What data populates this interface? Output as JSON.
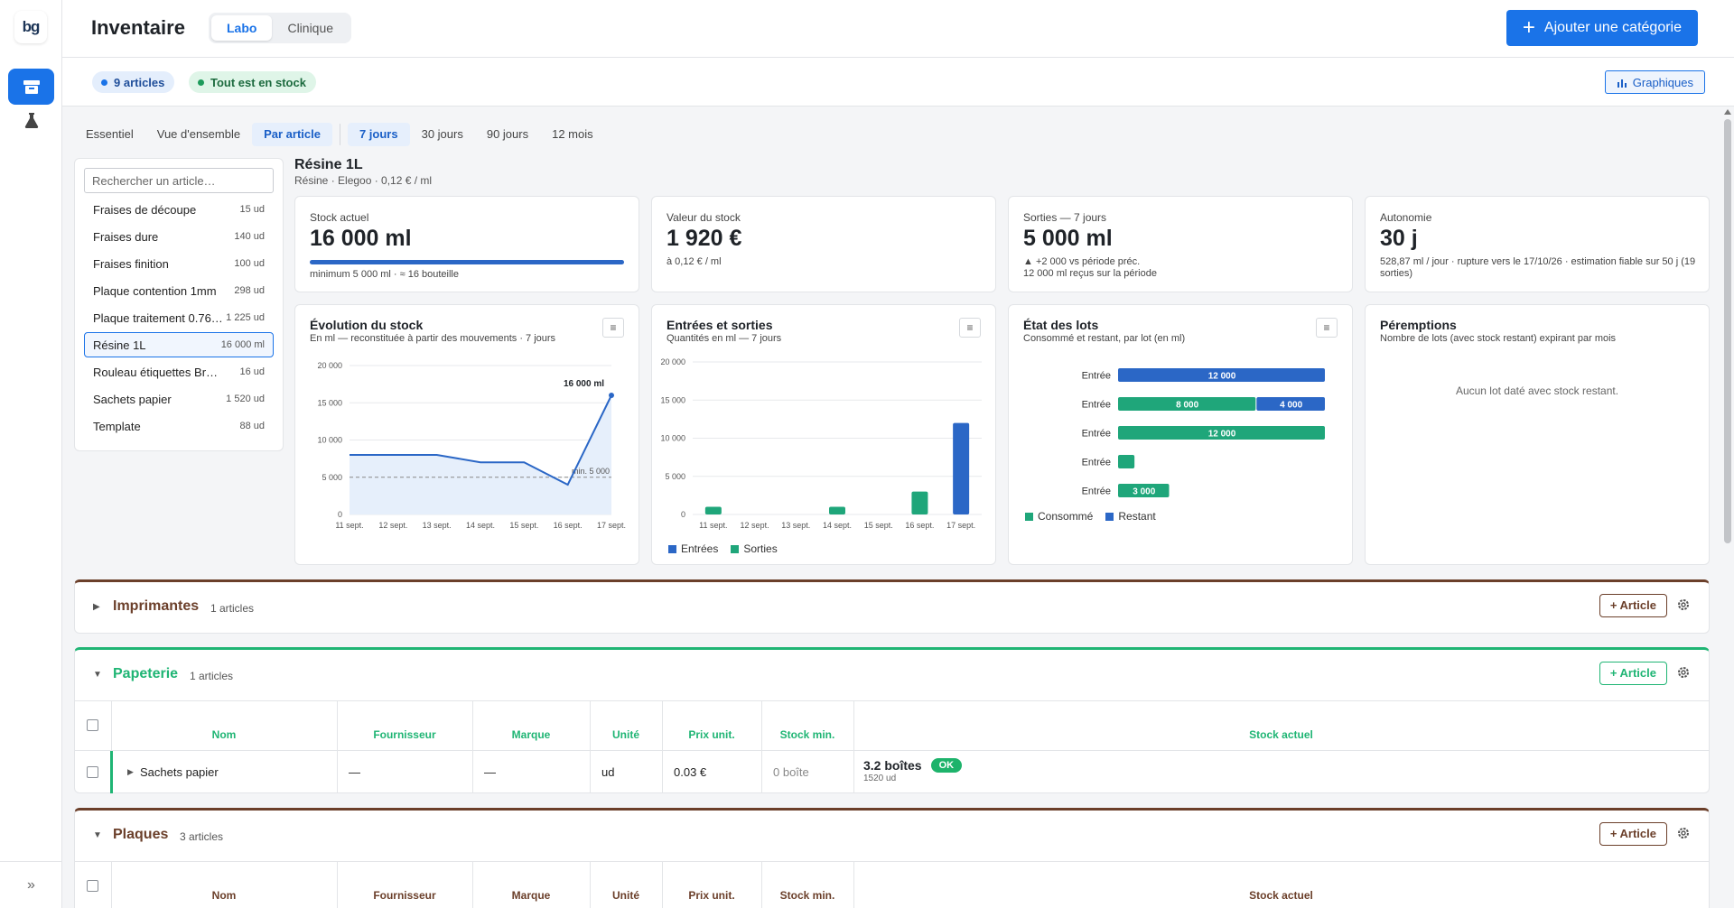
{
  "app": {
    "logo": "bg"
  },
  "header": {
    "title": "Inventaire",
    "tabs": [
      "Labo",
      "Clinique"
    ],
    "add_category": "Ajouter une catégorie"
  },
  "subheader": {
    "articles_pill": "9 articles",
    "stock_pill": "Tout est en stock",
    "graphs_button": "Graphiques"
  },
  "filters": {
    "views": [
      "Essentiel",
      "Vue d'ensemble",
      "Par article"
    ],
    "periods": [
      "7 jours",
      "30 jours",
      "90 jours",
      "12 mois"
    ]
  },
  "article_list": {
    "search_placeholder": "Rechercher un article…",
    "items": [
      {
        "name": "Fraises de découpe",
        "qty": "15 ud"
      },
      {
        "name": "Fraises dure",
        "qty": "140 ud"
      },
      {
        "name": "Fraises finition",
        "qty": "100 ud"
      },
      {
        "name": "Plaque contention 1mm",
        "qty": "298 ud"
      },
      {
        "name": "Plaque traitement 0.76…",
        "qty": "1 225 ud"
      },
      {
        "name": "Résine 1L",
        "qty": "16 000 ml"
      },
      {
        "name": "Rouleau étiquettes Brother",
        "qty": "16 ud"
      },
      {
        "name": "Sachets papier",
        "qty": "1 520 ud"
      },
      {
        "name": "Template",
        "qty": "88 ud"
      }
    ]
  },
  "detail": {
    "title": "Résine 1L",
    "subtitle": "Résine · Elegoo · 0,12 € / ml",
    "stock": {
      "label": "Stock actuel",
      "value": "16 000 ml",
      "note": "minimum 5 000 ml · ≈ 16 bouteille",
      "fill_fraction": 1.0
    },
    "valeur": {
      "label": "Valeur du stock",
      "value": "1 920 €",
      "note": "à 0,12 € / ml"
    },
    "sorties": {
      "label": "Sorties — 7 jours",
      "value": "5 000 ml",
      "note1": "▲ +2 000 vs période préc.",
      "note2": "12 000 ml reçus sur la période"
    },
    "autonomie": {
      "label": "Autonomie",
      "value": "30 j",
      "note": "528,87 ml / jour · rupture vers le 17/10/26 · estimation fiable sur 50 j (19 sorties)"
    }
  },
  "chart_data": [
    {
      "type": "area",
      "title": "Évolution du stock",
      "subtitle": "En ml — reconstituée à partir des mouvements · 7 jours",
      "x": [
        "11 sept.",
        "12 sept.",
        "13 sept.",
        "14 sept.",
        "15 sept.",
        "16 sept.",
        "17 sept."
      ],
      "series": [
        {
          "values": [
            8000,
            8000,
            8000,
            7000,
            7000,
            4000,
            16000
          ]
        }
      ],
      "yticks": [
        "20 000",
        "15 000",
        "10 000",
        "5 000",
        "0"
      ],
      "ylim": [
        0,
        20000
      ],
      "threshold": {
        "label": "min. 5 000",
        "value": 5000
      },
      "annotation": "16 000 ml"
    },
    {
      "type": "bar",
      "title": "Entrées et sorties",
      "subtitle": "Quantités en ml — 7 jours",
      "categories": [
        "11 sept.",
        "12 sept.",
        "13 sept.",
        "14 sept.",
        "15 sept.",
        "16 sept.",
        "17 sept."
      ],
      "series": [
        {
          "name": "Entrées",
          "color": "#2b67c6",
          "values": [
            0,
            0,
            0,
            0,
            0,
            0,
            12000
          ]
        },
        {
          "name": "Sorties",
          "color": "#1fa67a",
          "values": [
            1000,
            0,
            0,
            1000,
            0,
            3000,
            0
          ]
        }
      ],
      "yticks": [
        "20 000",
        "15 000",
        "10 000",
        "5 000",
        "0"
      ],
      "ylim": [
        0,
        20000
      ]
    },
    {
      "type": "bar",
      "orientation": "horizontal",
      "title": "État des lots",
      "subtitle": "Consommé et restant, par lot (en ml)",
      "categories": [
        "Entrée",
        "Entrée",
        "Entrée",
        "Entrée",
        "Entrée"
      ],
      "series": [
        {
          "name": "Consommé",
          "color": "#1fa67a",
          "values": [
            0,
            8000,
            12000,
            1000,
            3000
          ],
          "labels": [
            "",
            "8 000",
            "12 000",
            "",
            "3 000"
          ]
        },
        {
          "name": "Restant",
          "color": "#2b67c6",
          "values": [
            12000,
            4000,
            0,
            0,
            0
          ],
          "labels": [
            "12 000",
            "4 000",
            "",
            "",
            ""
          ]
        }
      ],
      "xlim": [
        0,
        12000
      ]
    },
    {
      "type": "bar",
      "title": "Péremptions",
      "subtitle": "Nombre de lots (avec stock restant) expirant par mois",
      "empty_message": "Aucun lot daté avec stock restant."
    }
  ],
  "categories": [
    {
      "name": "Imprimantes",
      "count": "1 articles",
      "color": "#6b3f2a",
      "expanded": false,
      "add": "+ Article"
    },
    {
      "name": "Papeterie",
      "count": "1 articles",
      "color": "#1fb574",
      "expanded": true,
      "add": "+ Article",
      "columns": [
        "Nom",
        "Fournisseur",
        "Marque",
        "Unité",
        "Prix unit.",
        "Stock min.",
        "Stock actuel"
      ],
      "rows": [
        {
          "name": "Sachets papier",
          "fournisseur": "—",
          "marque": "—",
          "unite": "ud",
          "prix": "0.03 €",
          "stock_min": "0 boîte",
          "stock": "3.2 boîtes",
          "stock_sub": "1520 ud",
          "status": "OK"
        }
      ]
    },
    {
      "name": "Plaques",
      "count": "3 articles",
      "color": "#6b3f2a",
      "expanded": true,
      "add": "+ Article",
      "columns": [
        "Nom",
        "Fournisseur",
        "Marque",
        "Unité",
        "Prix unit.",
        "Stock min.",
        "Stock actuel"
      ]
    }
  ]
}
